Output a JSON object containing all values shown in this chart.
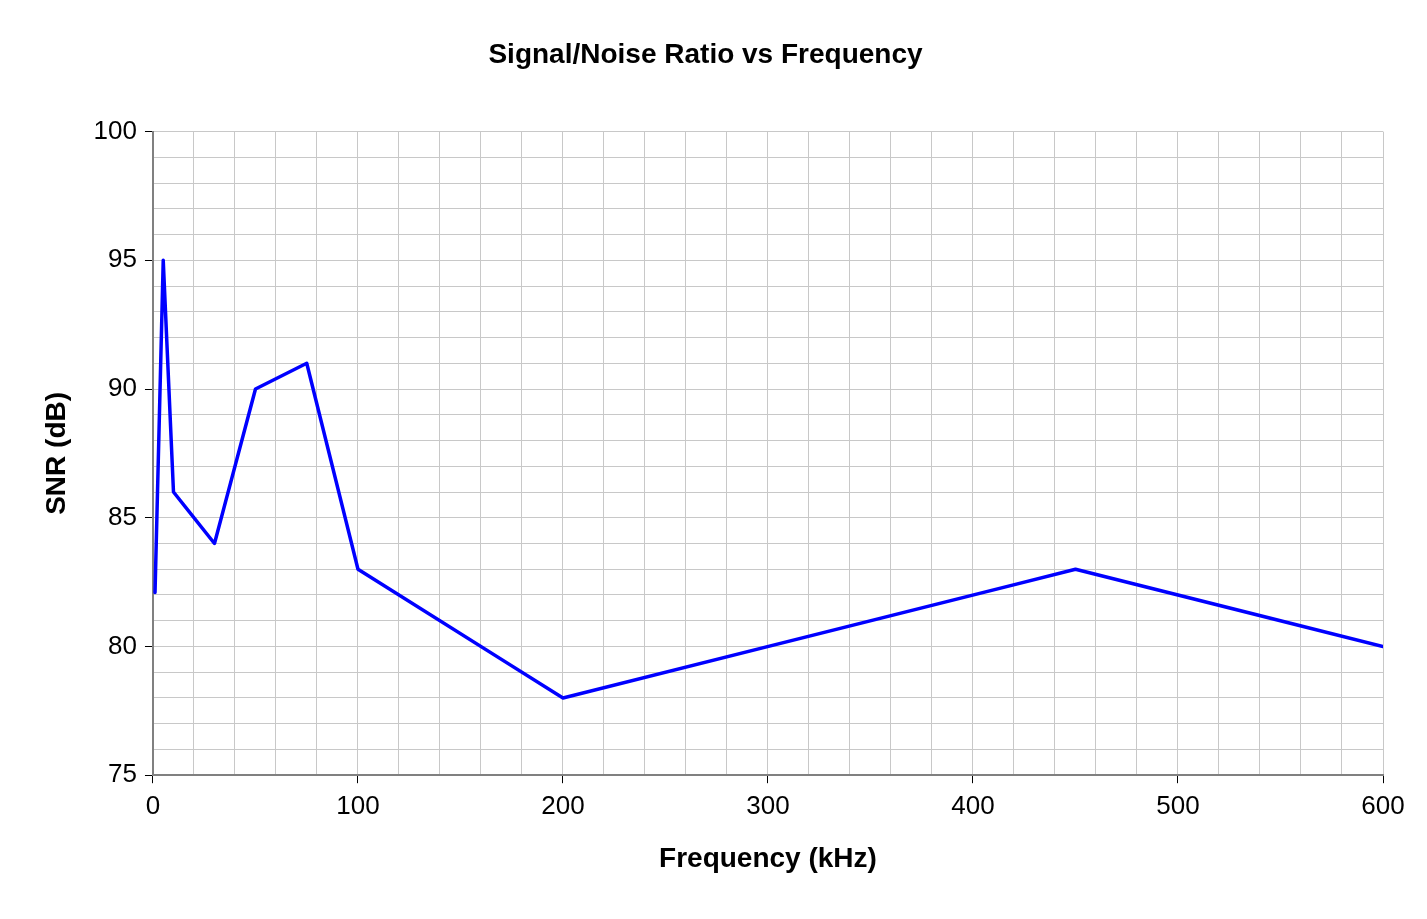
{
  "chart_data": {
    "type": "line",
    "title": "Signal/Noise Ratio vs Frequency",
    "xlabel": "Frequency (kHz)",
    "ylabel": "SNR (dB)",
    "x": [
      1,
      5,
      10,
      30,
      50,
      75,
      100,
      200,
      450,
      600
    ],
    "series": [
      {
        "color": "#0000ff",
        "values": [
          82.1,
          95,
          86,
          84,
          90,
          91,
          83,
          78,
          83,
          80
        ]
      }
    ],
    "xlim": [
      0,
      600
    ],
    "xticks": [
      0,
      {
        "value": 20,
        "label": null
      },
      {
        "value": 40,
        "label": null
      },
      {
        "value": 60,
        "label": null
      },
      {
        "value": 80,
        "label": null
      },
      100,
      {
        "value": 120,
        "label": null
      },
      {
        "value": 140,
        "label": null
      },
      {
        "value": 160,
        "label": null
      },
      {
        "value": 180,
        "label": null
      },
      200,
      {
        "value": 220,
        "label": null
      },
      {
        "value": 240,
        "label": null
      },
      {
        "value": 260,
        "label": null
      },
      {
        "value": 280,
        "label": null
      },
      300,
      {
        "value": 320,
        "label": null
      },
      {
        "value": 340,
        "label": null
      },
      {
        "value": 360,
        "label": null
      },
      {
        "value": 380,
        "label": null
      },
      400,
      {
        "value": 420,
        "label": null
      },
      {
        "value": 440,
        "label": null
      },
      {
        "value": 460,
        "label": null
      },
      {
        "value": 480,
        "label": null
      },
      500,
      {
        "value": 520,
        "label": null
      },
      {
        "value": 540,
        "label": null
      },
      {
        "value": 560,
        "label": null
      },
      {
        "value": 580,
        "label": null
      },
      600
    ],
    "ylim": [
      75,
      100
    ],
    "yticks": [
      75,
      {
        "value": 76,
        "label": null
      },
      {
        "value": 77,
        "label": null
      },
      {
        "value": 78,
        "label": null
      },
      {
        "value": 79,
        "label": null
      },
      80,
      {
        "value": 81,
        "label": null
      },
      {
        "value": 82,
        "label": null
      },
      {
        "value": 83,
        "label": null
      },
      {
        "value": 84,
        "label": null
      },
      85,
      {
        "value": 86,
        "label": null
      },
      {
        "value": 87,
        "label": null
      },
      {
        "value": 88,
        "label": null
      },
      {
        "value": 89,
        "label": null
      },
      90,
      {
        "value": 91,
        "label": null
      },
      {
        "value": 92,
        "label": null
      },
      {
        "value": 93,
        "label": null
      },
      {
        "value": 94,
        "label": null
      },
      95,
      {
        "value": 96,
        "label": null
      },
      {
        "value": 97,
        "label": null
      },
      {
        "value": 98,
        "label": null
      },
      {
        "value": 99,
        "label": null
      },
      100
    ],
    "grid": true,
    "legend": false,
    "marker": "none",
    "line_style": "solid"
  }
}
